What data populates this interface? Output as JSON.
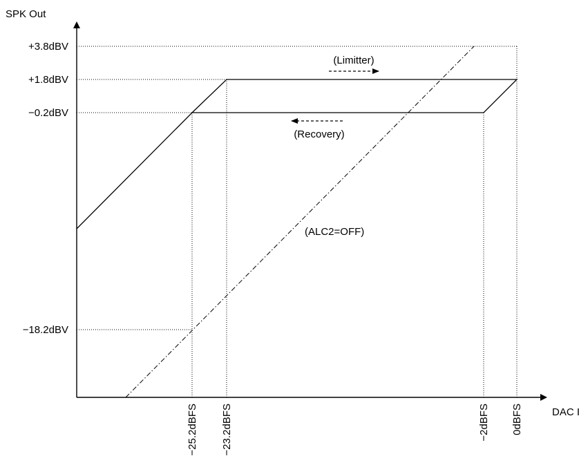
{
  "axes": {
    "y_title": "SPK Out",
    "x_title": "DAC In"
  },
  "y_ticks": [
    "+3.8dBV",
    "+1.8dBV",
    "−0.2dBV",
    "−18.2dBV"
  ],
  "x_ticks": [
    "−25.2dBFS",
    "−23.2dBFS",
    "−2dBFS",
    "0dBFS"
  ],
  "annotations": {
    "limiter": "(Limitter)",
    "recovery": "(Recovery)",
    "alc_off": "(ALC2=OFF)"
  }
}
